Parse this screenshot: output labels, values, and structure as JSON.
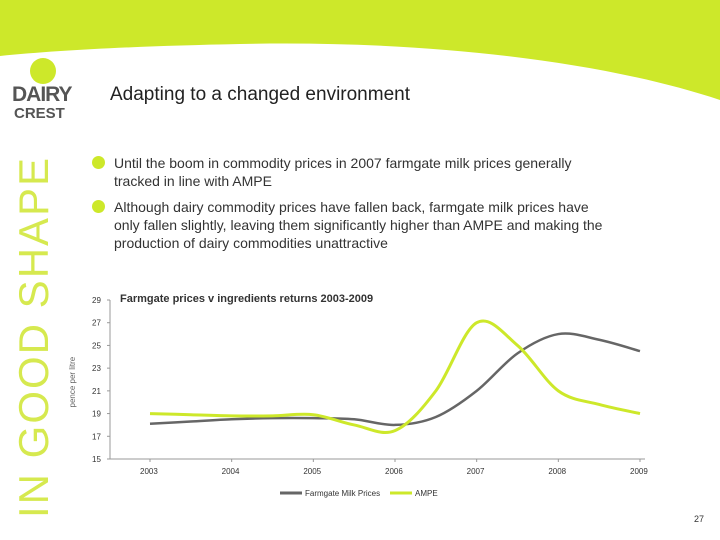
{
  "colors": {
    "accent_green": "#cde82a",
    "grey_line": "#666666",
    "dark_grey": "#555555",
    "tagline_green": "#d6e94f"
  },
  "logo": {
    "line1": "DAIRY",
    "line2": "CREST"
  },
  "tagline": "IN GOOD SHAPE",
  "slide": {
    "title": "Adapting to a changed environment",
    "bullets": [
      "Until the boom in commodity prices in 2007 farmgate milk prices generally tracked in line with AMPE",
      "Although dairy commodity prices have fallen back, farmgate milk prices have only fallen slightly, leaving them significantly higher than AMPE and making the production of dairy commodities unattractive"
    ],
    "page_number": "27"
  },
  "chart_data": {
    "type": "line",
    "title": "Farmgate prices v ingredients returns 2003-2009",
    "xlabel": "",
    "ylabel": "pence per litre",
    "categories": [
      "2003",
      "2004",
      "2005",
      "2006",
      "2007",
      "2008",
      "2009"
    ],
    "x": [
      2003,
      2003.5,
      2004,
      2004.5,
      2005,
      2005.5,
      2006,
      2006.5,
      2007,
      2007.5,
      2008,
      2008.5,
      2009
    ],
    "ylim": [
      15,
      29
    ],
    "yticks": [
      15,
      17,
      19,
      21,
      23,
      25,
      27,
      29
    ],
    "grid": false,
    "legend_position": "bottom",
    "series": [
      {
        "name": "Farmgate Milk Prices",
        "color": "#666666",
        "values": [
          18.1,
          18.3,
          18.5,
          18.6,
          18.6,
          18.5,
          18.0,
          18.7,
          21.0,
          24.3,
          26.0,
          25.5,
          24.5
        ]
      },
      {
        "name": "AMPE",
        "color": "#cde82a",
        "values": [
          19.0,
          18.9,
          18.8,
          18.8,
          18.9,
          18.0,
          17.5,
          21.0,
          27.0,
          25.0,
          21.0,
          19.8,
          19.0
        ]
      }
    ]
  }
}
